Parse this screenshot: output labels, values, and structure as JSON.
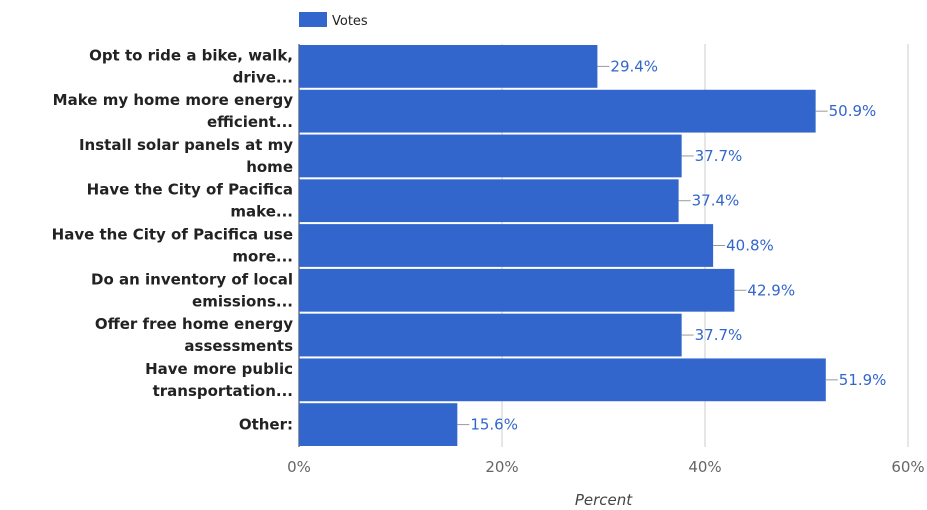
{
  "chart_data": {
    "type": "bar",
    "orientation": "horizontal",
    "categories": [
      [
        "Opt to ride a bike, walk,",
        "drive..."
      ],
      [
        "Make my home more energy",
        "efficient..."
      ],
      [
        "Install solar panels at my",
        "home"
      ],
      [
        "Have the City of Pacifica",
        "make..."
      ],
      [
        "Have the City of Pacifica use",
        "more..."
      ],
      [
        "Do an inventory of local",
        "emissions..."
      ],
      [
        "Offer free home energy",
        "assessments"
      ],
      [
        "Have more public",
        "transportation..."
      ],
      [
        "Other:"
      ]
    ],
    "series": [
      {
        "name": "Votes",
        "values": [
          29.4,
          50.9,
          37.7,
          37.4,
          40.8,
          42.9,
          37.7,
          51.9,
          15.6
        ],
        "value_labels": [
          "29.4%",
          "50.9%",
          "37.7%",
          "37.4%",
          "40.8%",
          "42.9%",
          "37.7%",
          "51.9%",
          "15.6%"
        ]
      }
    ],
    "xlabel": "Percent",
    "xlim": [
      0,
      60
    ],
    "xticks": [
      0,
      20,
      40,
      60
    ],
    "xtick_labels": [
      "0%",
      "20%",
      "40%",
      "60%"
    ],
    "grid": true,
    "legend_position": "top-left",
    "colors": {
      "bar": "#3366cc",
      "value_label": "#3366cc",
      "grid": "#cccccc",
      "category_text": "#222222",
      "tick_text": "#666666"
    }
  }
}
